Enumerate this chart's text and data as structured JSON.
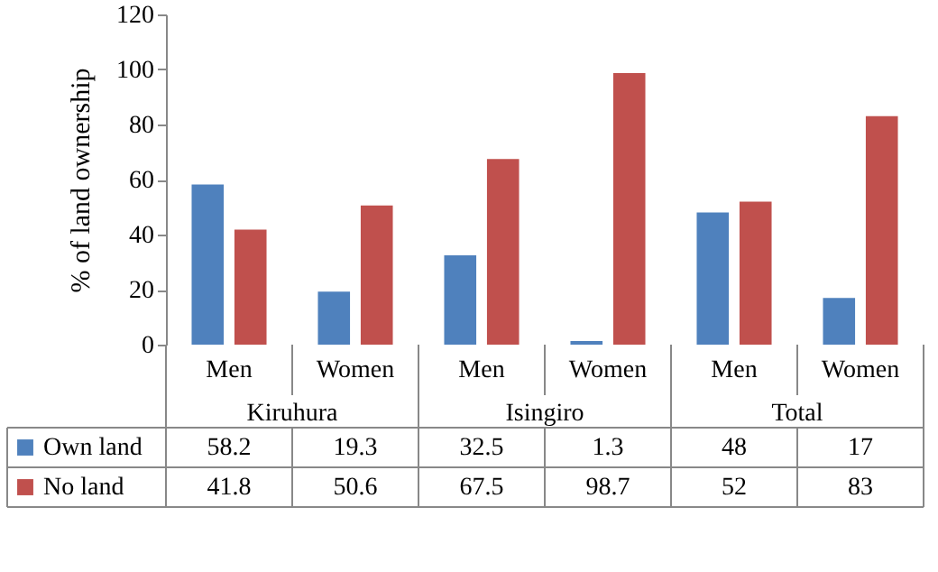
{
  "chart_data": {
    "type": "bar",
    "ylabel": "% of land ownership",
    "categories": [
      "Men",
      "Women",
      "Men",
      "Women",
      "Men",
      "Women"
    ],
    "annotations": [
      "Kiruhura",
      "Isingiro",
      "Total"
    ],
    "series": [
      {
        "name": "Own land",
        "color": "#4f81bd",
        "values": [
          58.2,
          19.3,
          32.5,
          1.3,
          48,
          17
        ]
      },
      {
        "name": "No land",
        "color": "#c0504d",
        "values": [
          41.8,
          50.6,
          67.5,
          98.7,
          52,
          83
        ]
      }
    ],
    "ylim": [
      0,
      120
    ],
    "yticks": [
      0,
      20,
      40,
      60,
      80,
      100,
      120
    ],
    "grid": false,
    "legend": "bottom",
    "data_labels": true
  }
}
